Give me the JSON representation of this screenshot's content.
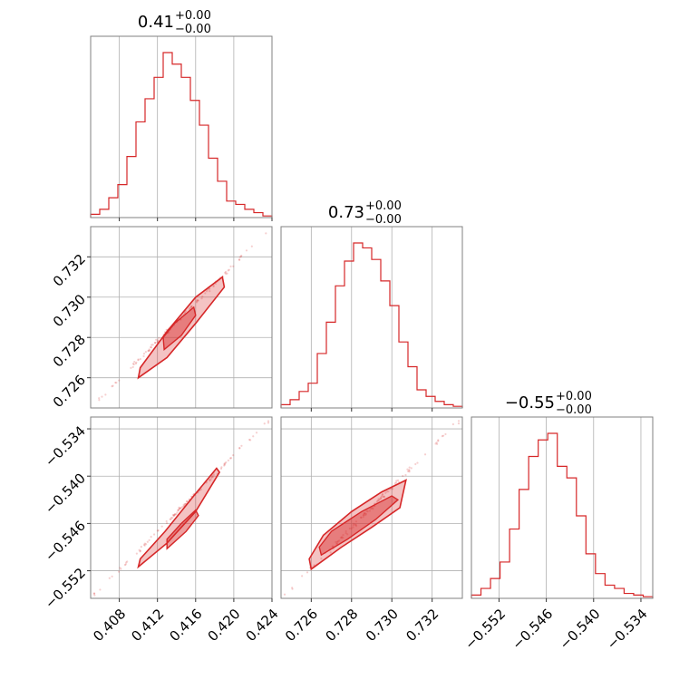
{
  "chart_data": {
    "type": "corner",
    "color": "#d62728",
    "parameters": [
      {
        "title": {
          "main": "0.41",
          "sup": "+0.00",
          "sub": "−0.00"
        },
        "range": [
          0.405,
          0.424
        ],
        "ticks": [
          0.408,
          0.412,
          0.416,
          0.42,
          0.424
        ],
        "tick_labels": [
          "0.408",
          "0.412",
          "0.416",
          "0.420",
          "0.424"
        ],
        "hist_counts": [
          2,
          5,
          12,
          20,
          37,
          58,
          72,
          85,
          100,
          93,
          85,
          71,
          56,
          36,
          22,
          10,
          8,
          5,
          3,
          1
        ]
      },
      {
        "title": {
          "main": "0.73",
          "sup": "+0.00",
          "sub": "−0.00"
        },
        "range": [
          0.7245,
          0.7335
        ],
        "ticks": [
          0.726,
          0.728,
          0.73,
          0.732
        ],
        "tick_labels": [
          "0.726",
          "0.728",
          "0.730",
          "0.732"
        ],
        "hist_counts": [
          2,
          5,
          10,
          15,
          33,
          52,
          74,
          89,
          100,
          97,
          90,
          77,
          62,
          40,
          25,
          11,
          7,
          4,
          2,
          1
        ]
      },
      {
        "title": {
          "main": "−0.55",
          "sup": "+0.00",
          "sub": "−0.00"
        },
        "range": [
          -0.5555,
          -0.5325
        ],
        "ticks": [
          -0.552,
          -0.546,
          -0.54,
          -0.534
        ],
        "tick_labels": [
          "−0.552",
          "−0.546",
          "−0.540",
          "−0.534"
        ],
        "hist_counts": [
          2,
          6,
          12,
          22,
          42,
          66,
          86,
          96,
          100,
          80,
          73,
          50,
          27,
          15,
          8,
          6,
          3,
          2,
          1
        ]
      }
    ],
    "pair_regions": [
      {
        "x_param": 0,
        "y_param": 1,
        "outer": [
          [
            0.41,
            0.726
          ],
          [
            0.413,
            0.727
          ],
          [
            0.416,
            0.7287
          ],
          [
            0.419,
            0.7305
          ],
          [
            0.4188,
            0.731
          ],
          [
            0.416,
            0.73
          ],
          [
            0.413,
            0.7283
          ],
          [
            0.4102,
            0.7265
          ]
        ],
        "inner": [
          [
            0.4127,
            0.7274
          ],
          [
            0.4145,
            0.7281
          ],
          [
            0.416,
            0.7291
          ],
          [
            0.4158,
            0.7295
          ],
          [
            0.4138,
            0.7287
          ],
          [
            0.4126,
            0.728
          ]
        ]
      },
      {
        "x_param": 0,
        "y_param": 2,
        "outer": [
          [
            0.41,
            -0.5515
          ],
          [
            0.413,
            -0.5485
          ],
          [
            0.416,
            -0.5445
          ],
          [
            0.4185,
            -0.5395
          ],
          [
            0.4182,
            -0.539
          ],
          [
            0.4158,
            -0.5425
          ],
          [
            0.4128,
            -0.547
          ],
          [
            0.4102,
            -0.5505
          ]
        ],
        "inner": [
          [
            0.413,
            -0.5492
          ],
          [
            0.415,
            -0.547
          ],
          [
            0.4163,
            -0.545
          ],
          [
            0.416,
            -0.5443
          ],
          [
            0.4145,
            -0.546
          ],
          [
            0.413,
            -0.548
          ]
        ]
      },
      {
        "x_param": 1,
        "y_param": 2,
        "outer": [
          [
            0.726,
            -0.5518
          ],
          [
            0.7275,
            -0.549
          ],
          [
            0.729,
            -0.5465
          ],
          [
            0.7304,
            -0.544
          ],
          [
            0.7307,
            -0.5405
          ],
          [
            0.7295,
            -0.542
          ],
          [
            0.728,
            -0.5445
          ],
          [
            0.7266,
            -0.5475
          ],
          [
            0.7259,
            -0.5505
          ]
        ],
        "inner": [
          [
            0.7265,
            -0.55
          ],
          [
            0.7278,
            -0.548
          ],
          [
            0.7292,
            -0.5455
          ],
          [
            0.7303,
            -0.543
          ],
          [
            0.73,
            -0.5425
          ],
          [
            0.7285,
            -0.5445
          ],
          [
            0.727,
            -0.547
          ],
          [
            0.7264,
            -0.549
          ]
        ]
      }
    ],
    "grid": true
  }
}
